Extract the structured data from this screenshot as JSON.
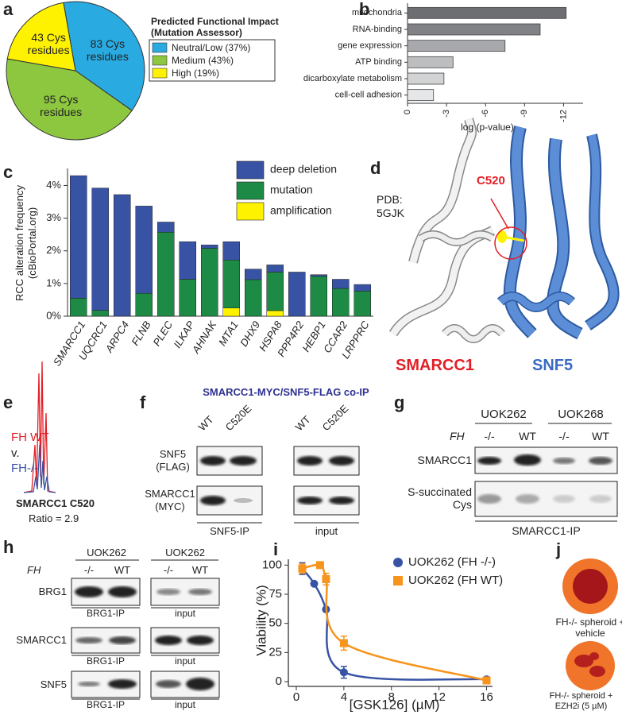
{
  "panel_letters": [
    "a",
    "b",
    "c",
    "d",
    "e",
    "f",
    "g",
    "h",
    "i",
    "j"
  ],
  "chart_data": [
    {
      "type": "pie",
      "legend_title": "Predicted Functional Impact (Mutation Assessor)",
      "categories": [
        "Neutral/Low (37%)",
        "Medium (43%)",
        "High (19%)"
      ],
      "values": [
        83,
        95,
        43
      ],
      "value_labels": [
        "83 Cys residues",
        "95 Cys residues",
        "43 Cys residues"
      ],
      "colors": [
        "#29abe2",
        "#8dc63f",
        "#fff200"
      ]
    },
    {
      "type": "hbar",
      "xlabel": "log (p-value)",
      "categories": [
        "mitochondria",
        "RNA-binding",
        "gene expression",
        "ATP binding",
        "dicarboxylate metabolism",
        "cell-cell adhesion"
      ],
      "values": [
        -12.2,
        -10.2,
        -7.5,
        -3.5,
        -2.8,
        -2.0
      ],
      "colors": [
        "#6d6e71",
        "#808285",
        "#a7a9ac",
        "#bcbec0",
        "#d1d3d4",
        "#e6e7e8"
      ],
      "xlim": [
        0,
        -13.5
      ],
      "xticks": [
        0,
        -3,
        -6,
        -9,
        -12
      ]
    },
    {
      "type": "stacked_bar",
      "ylabel": "RCC alteration frequency (cBioPortal.org)",
      "categories": [
        "SMARCC1",
        "UQCRC1",
        "ARPC4",
        "FLNB",
        "PLEC",
        "ILKAP",
        "AHNAK",
        "MTA1",
        "DHX9",
        "HSPA8",
        "PPP4R2",
        "HEBP1",
        "CCAR2",
        "LRPPRC"
      ],
      "series": [
        {
          "name": "deep deletion",
          "color": "#3953a4",
          "values": [
            3.75,
            3.74,
            3.72,
            2.67,
            0.31,
            1.15,
            0.1,
            0.56,
            0.32,
            0.22,
            1.35,
            0.05,
            0.28,
            0.2
          ]
        },
        {
          "name": "mutation",
          "color": "#1d8a45",
          "values": [
            0.55,
            0.18,
            0,
            0.7,
            2.57,
            1.13,
            2.08,
            1.47,
            1.12,
            1.18,
            0,
            1.22,
            0.85,
            0.77
          ]
        },
        {
          "name": "amplification",
          "color": "#fff200",
          "values": [
            0,
            0,
            0,
            0,
            0,
            0,
            0,
            0.25,
            0,
            0.17,
            0,
            0,
            0,
            0
          ]
        }
      ],
      "ylim": [
        0,
        4.4
      ],
      "yticks": [
        {
          "value": 0,
          "label": "0%"
        },
        {
          "value": 1,
          "label": "1%"
        },
        {
          "value": 2,
          "label": "2%"
        },
        {
          "value": 3,
          "label": "3%"
        },
        {
          "value": 4,
          "label": "4%"
        }
      ]
    },
    {
      "type": "line",
      "xlabel": "[GSK126] (µM)",
      "ylabel": "Viability (%)",
      "series": [
        {
          "name": "UOK262 (FH -/-)",
          "color": "#3953a4",
          "marker": "circle",
          "x": [
            0.5,
            1.5,
            2.5,
            4,
            16
          ],
          "values": [
            97,
            84,
            62,
            8,
            2
          ],
          "errors": [
            5,
            0,
            0,
            5,
            0
          ]
        },
        {
          "name": "UOK262 (FH WT)",
          "color": "#f7941d",
          "marker": "square",
          "x": [
            0.5,
            2,
            2.5,
            4,
            16
          ],
          "values": [
            97,
            100,
            88,
            33,
            1
          ],
          "errors": [
            4,
            0,
            5,
            6,
            0
          ]
        }
      ],
      "xlim": [
        0,
        16.5
      ],
      "ylim": [
        0,
        105
      ],
      "xticks": [
        0,
        4,
        8,
        12,
        16
      ],
      "yticks": [
        0,
        25,
        50,
        75,
        100
      ]
    }
  ],
  "structure": {
    "pdb": "PDB: 5GJK",
    "site": "C520",
    "protein_a": "SMARCC1",
    "protein_b": "SNF5"
  },
  "ms_trace": {
    "wt": "FH WT",
    "vs": "v.",
    "ko": "FH-/-",
    "peptide": "SMARCC1 C520",
    "ratio": "Ratio = 2.9"
  },
  "coip": {
    "title": "SMARCC1-MYC/SNF5-FLAG co-IP",
    "lanes": [
      "WT",
      "C520E",
      "WT",
      "C520E"
    ],
    "rows": [
      "SNF5 (FLAG)",
      "SMARCC1 (MYC)"
    ],
    "fractions": [
      "SNF5-IP",
      "input"
    ]
  },
  "succination": {
    "cell_lines": [
      "UOK262",
      "UOK268"
    ],
    "genotype_label": "FH",
    "genotypes": [
      "-/-",
      "WT",
      "-/-",
      "WT"
    ],
    "rows": [
      "SMARCC1",
      "S-succinated Cys"
    ],
    "fraction": "SMARCC1-IP"
  },
  "brg1_ip": {
    "cell_lines": [
      "UOK262",
      "UOK262"
    ],
    "genotype_label": "FH",
    "genotypes": [
      "-/-",
      "WT",
      "-/-",
      "WT"
    ],
    "rows": [
      "BRG1",
      "SMARCC1",
      "SNF5"
    ],
    "fractions": [
      "BRG1-IP",
      "input"
    ]
  },
  "spheroids": [
    "FH-/- spheroid + vehicle",
    "FH-/- spheroid + EZH2i (5 µM)"
  ]
}
